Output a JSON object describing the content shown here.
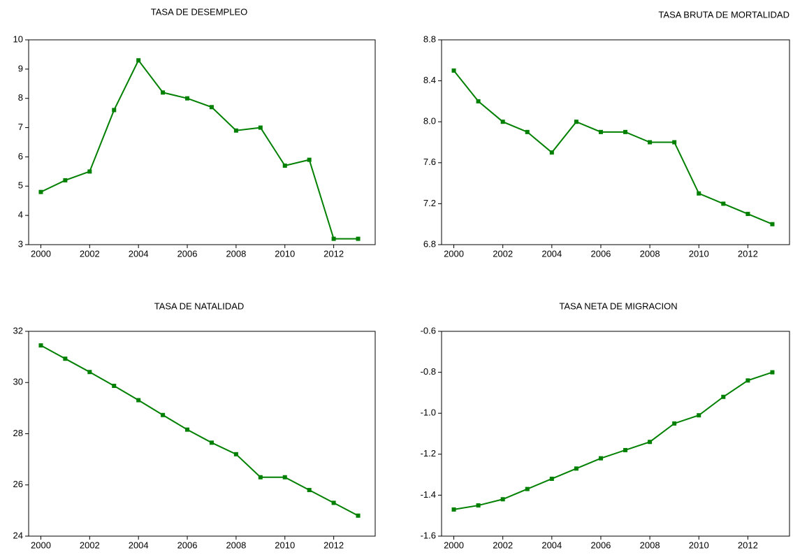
{
  "chart_data": [
    {
      "type": "line",
      "title": "TASA DE DESEMPLEO",
      "x": [
        2000,
        2001,
        2002,
        2003,
        2004,
        2005,
        2006,
        2007,
        2008,
        2009,
        2010,
        2011,
        2012,
        2013
      ],
      "values": [
        4.8,
        5.2,
        5.5,
        7.6,
        9.3,
        8.2,
        8.0,
        7.7,
        6.9,
        7.0,
        5.7,
        5.9,
        3.2,
        3.2
      ],
      "color": "#008000",
      "xlim": [
        1999.5,
        2013.7
      ],
      "xticks": [
        2000,
        2002,
        2004,
        2006,
        2008,
        2010,
        2012
      ],
      "ylim": [
        3,
        10
      ],
      "yticks": [
        3,
        4,
        5,
        6,
        7,
        8,
        9,
        10
      ]
    },
    {
      "type": "line",
      "title": "TASA BRUTA DE MORTALIDAD",
      "x": [
        2000,
        2001,
        2002,
        2003,
        2004,
        2005,
        2006,
        2007,
        2008,
        2009,
        2010,
        2011,
        2012,
        2013
      ],
      "values": [
        8.5,
        8.2,
        8.0,
        7.9,
        7.7,
        8.0,
        7.9,
        7.9,
        7.8,
        7.8,
        7.3,
        7.2,
        7.1,
        7.0
      ],
      "color": "#008000",
      "xlim": [
        1999.5,
        2013.7
      ],
      "xticks": [
        2000,
        2002,
        2004,
        2006,
        2008,
        2010,
        2012
      ],
      "ylim": [
        6.8,
        8.8
      ],
      "yticks": [
        6.8,
        7.2,
        7.6,
        {
          "value": 8,
          "label": "8.0"
        },
        8.4,
        8.8
      ]
    },
    {
      "type": "line",
      "title": "TASA DE NATALIDAD",
      "x": [
        2000,
        2001,
        2002,
        2003,
        2004,
        2005,
        2006,
        2007,
        2008,
        2009,
        2010,
        2011,
        2012,
        2013
      ],
      "values": [
        31.45,
        30.93,
        30.41,
        29.87,
        29.31,
        28.73,
        28.16,
        27.65,
        27.2,
        26.3,
        26.3,
        25.8,
        25.3,
        24.8
      ],
      "color": "#008000",
      "xlim": [
        1999.5,
        2013.7
      ],
      "xticks": [
        2000,
        2002,
        2004,
        2006,
        2008,
        2010,
        2012
      ],
      "ylim": [
        24,
        32
      ],
      "yticks": [
        24,
        26,
        28,
        30,
        32
      ]
    },
    {
      "type": "line",
      "title": "TASA NETA DE MIGRACION",
      "x": [
        2000,
        2001,
        2002,
        2003,
        2004,
        2005,
        2006,
        2007,
        2008,
        2009,
        2010,
        2011,
        2012,
        2013
      ],
      "values": [
        -1.47,
        -1.45,
        -1.42,
        -1.37,
        -1.32,
        -1.27,
        -1.22,
        -1.18,
        -1.14,
        -1.05,
        -1.01,
        -0.92,
        -0.84,
        -0.8
      ],
      "color": "#008000",
      "xlim": [
        1999.5,
        2013.7
      ],
      "xticks": [
        2000,
        2002,
        2004,
        2006,
        2008,
        2010,
        2012
      ],
      "ylim": [
        -1.6,
        -0.6
      ],
      "yticks": [
        -1.6,
        -1.4,
        -1.2,
        {
          "value": -1,
          "label": "-1.0"
        },
        -0.8,
        -0.6
      ]
    }
  ]
}
